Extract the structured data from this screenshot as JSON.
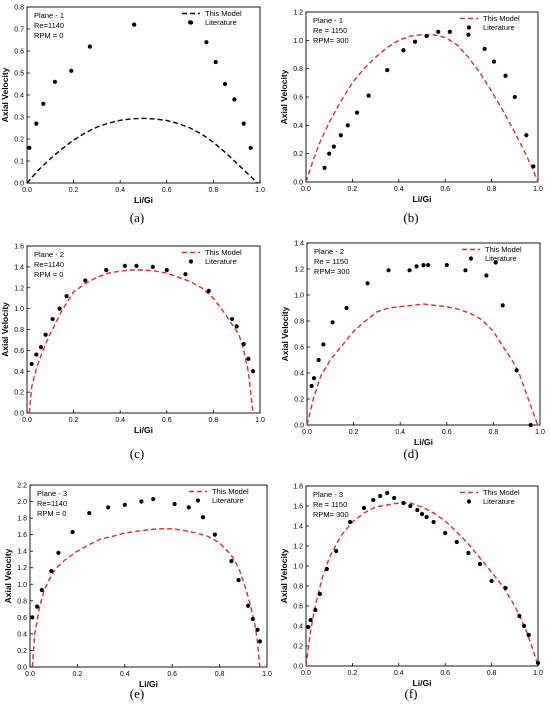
{
  "chart_data": [
    {
      "type": "line",
      "panel": "(a)",
      "legend_text": [
        "Plane - 1",
        "Re=1140",
        "RPM = 0"
      ],
      "xlabel": "Li/Gi",
      "ylabel": "Axial Velocity",
      "xlim": [
        0,
        1.0
      ],
      "ylim": [
        0,
        0.8
      ],
      "xticks": [
        "0.0",
        "0.2",
        "0.4",
        "0.6",
        "0.8",
        "1.0"
      ],
      "yticks": [
        "0.0",
        "0.1",
        "0.2",
        "0.3",
        "0.4",
        "0.5",
        "0.6",
        "0.7",
        "0.8"
      ],
      "legend_position": "top-right",
      "series": [
        {
          "name": "This Model",
          "style": "dashed",
          "color": "#000000",
          "x": [
            0,
            0.05,
            0.1,
            0.15,
            0.2,
            0.25,
            0.3,
            0.35,
            0.4,
            0.45,
            0.5,
            0.55,
            0.6,
            0.65,
            0.7,
            0.75,
            0.8,
            0.85,
            0.9,
            0.95,
            0.99
          ],
          "y": [
            0.0,
            0.06,
            0.11,
            0.155,
            0.195,
            0.228,
            0.254,
            0.272,
            0.285,
            0.292,
            0.294,
            0.291,
            0.284,
            0.27,
            0.25,
            0.222,
            0.185,
            0.14,
            0.09,
            0.04,
            0.0
          ]
        },
        {
          "name": "Literature",
          "style": "scatter",
          "color": "#000000",
          "x": [
            0.01,
            0.04,
            0.07,
            0.12,
            0.19,
            0.27,
            0.46,
            0.7,
            0.77,
            0.81,
            0.85,
            0.89,
            0.93,
            0.96
          ],
          "y": [
            0.16,
            0.27,
            0.36,
            0.46,
            0.51,
            0.62,
            0.72,
            0.73,
            0.64,
            0.55,
            0.45,
            0.38,
            0.27,
            0.16
          ]
        }
      ]
    },
    {
      "type": "line",
      "panel": "(b)",
      "legend_text": [
        "Plane - 1",
        "Re = 1150",
        "RPM= 300"
      ],
      "xlabel": "Li/Gi",
      "ylabel": "Axial Velocity",
      "xlim": [
        0,
        1.0
      ],
      "ylim": [
        0,
        1.2
      ],
      "xticks": [
        "0.0",
        "0.2",
        "0.4",
        "0.6",
        "0.8",
        "1.0"
      ],
      "yticks": [
        "0.0",
        "0.2",
        "0.4",
        "0.6",
        "0.8",
        "1.0",
        "1.2"
      ],
      "legend_position": "top-right",
      "series": [
        {
          "name": "This Model",
          "style": "dashed",
          "color": "#cc3333",
          "x": [
            0,
            0.03,
            0.06,
            0.1,
            0.15,
            0.2,
            0.25,
            0.3,
            0.35,
            0.4,
            0.45,
            0.5,
            0.55,
            0.6,
            0.65,
            0.7,
            0.75,
            0.8,
            0.85,
            0.9,
            0.94,
            0.97,
            1.0
          ],
          "y": [
            0.0,
            0.15,
            0.28,
            0.42,
            0.57,
            0.7,
            0.8,
            0.88,
            0.95,
            1.0,
            1.03,
            1.04,
            1.04,
            1.02,
            0.97,
            0.88,
            0.77,
            0.64,
            0.5,
            0.35,
            0.22,
            0.12,
            0.0
          ]
        },
        {
          "name": "Literature",
          "style": "scatter",
          "color": "#000000",
          "x": [
            0.08,
            0.1,
            0.12,
            0.15,
            0.18,
            0.22,
            0.27,
            0.35,
            0.42,
            0.47,
            0.52,
            0.57,
            0.62,
            0.7,
            0.77,
            0.81,
            0.86,
            0.9,
            0.95,
            0.98
          ],
          "y": [
            0.1,
            0.2,
            0.25,
            0.33,
            0.4,
            0.49,
            0.61,
            0.79,
            0.93,
            0.99,
            1.03,
            1.06,
            1.06,
            1.04,
            0.94,
            0.85,
            0.75,
            0.6,
            0.33,
            0.11
          ]
        }
      ]
    },
    {
      "type": "line",
      "panel": "(c)",
      "legend_text": [
        "Plane - 2",
        "Re=1140",
        "RPM = 0"
      ],
      "xlabel": "Li/Gi",
      "ylabel": "Axial Velocity",
      "xlim": [
        0,
        1.0
      ],
      "ylim": [
        0,
        1.6
      ],
      "xticks": [
        "0.0",
        "0.2",
        "0.4",
        "0.6",
        "0.8",
        "1.0"
      ],
      "yticks": [
        "0.0",
        "0.2",
        "0.4",
        "0.6",
        "0.8",
        "1.0",
        "1.2",
        "1.4",
        "1.6"
      ],
      "legend_position": "top-right",
      "series": [
        {
          "name": "This Model",
          "style": "dashed",
          "color": "#cc3333",
          "x": [
            0.01,
            0.02,
            0.04,
            0.06,
            0.08,
            0.1,
            0.15,
            0.2,
            0.25,
            0.3,
            0.35,
            0.4,
            0.45,
            0.5,
            0.55,
            0.6,
            0.65,
            0.7,
            0.75,
            0.8,
            0.85,
            0.88,
            0.91,
            0.93,
            0.95,
            0.96,
            0.97
          ],
          "y": [
            0.0,
            0.25,
            0.42,
            0.55,
            0.66,
            0.76,
            0.98,
            1.16,
            1.24,
            1.3,
            1.34,
            1.36,
            1.37,
            1.37,
            1.36,
            1.34,
            1.3,
            1.26,
            1.2,
            1.1,
            0.95,
            0.85,
            0.75,
            0.6,
            0.4,
            0.2,
            0.0
          ]
        },
        {
          "name": "Literature",
          "style": "scatter",
          "color": "#000000",
          "x": [
            0.02,
            0.04,
            0.06,
            0.08,
            0.11,
            0.14,
            0.17,
            0.25,
            0.34,
            0.42,
            0.47,
            0.54,
            0.6,
            0.68,
            0.78,
            0.88,
            0.9,
            0.93,
            0.95,
            0.97
          ],
          "y": [
            0.47,
            0.56,
            0.63,
            0.75,
            0.9,
            1.0,
            1.12,
            1.27,
            1.37,
            1.41,
            1.41,
            1.4,
            1.37,
            1.33,
            1.17,
            0.9,
            0.83,
            0.66,
            0.52,
            0.4
          ]
        }
      ]
    },
    {
      "type": "line",
      "panel": "(d)",
      "legend_text": [
        "Plane - 2",
        "Re = 1150",
        "RPM= 300"
      ],
      "xlabel": "Li/Gi",
      "ylabel": "Axial Velocity",
      "xlim": [
        0,
        1.0
      ],
      "ylim": [
        0,
        1.4
      ],
      "xticks": [
        "0.0",
        "0.2",
        "0.4",
        "0.6",
        "0.8",
        "1.0"
      ],
      "yticks": [
        "0.0",
        "0.2",
        "0.4",
        "0.6",
        "0.8",
        "1.0",
        "1.2",
        "1.4"
      ],
      "legend_position": "top-right",
      "series": [
        {
          "name": "This Model",
          "style": "dashed",
          "color": "#cc3333",
          "x": [
            0,
            0.03,
            0.06,
            0.1,
            0.15,
            0.2,
            0.25,
            0.3,
            0.35,
            0.4,
            0.45,
            0.5,
            0.55,
            0.6,
            0.65,
            0.7,
            0.75,
            0.8,
            0.85,
            0.88,
            0.91,
            0.94,
            0.97,
            0.99
          ],
          "y": [
            0.0,
            0.22,
            0.38,
            0.5,
            0.61,
            0.72,
            0.8,
            0.87,
            0.9,
            0.91,
            0.92,
            0.93,
            0.92,
            0.91,
            0.89,
            0.86,
            0.81,
            0.72,
            0.58,
            0.5,
            0.4,
            0.25,
            0.1,
            0.0
          ]
        },
        {
          "name": "Literature",
          "style": "scatter",
          "color": "#000000",
          "x": [
            0.02,
            0.03,
            0.05,
            0.07,
            0.11,
            0.17,
            0.26,
            0.35,
            0.44,
            0.47,
            0.5,
            0.52,
            0.6,
            0.68,
            0.77,
            0.81,
            0.84,
            0.9,
            0.96
          ],
          "y": [
            0.3,
            0.36,
            0.5,
            0.62,
            0.79,
            0.9,
            1.09,
            1.19,
            1.19,
            1.22,
            1.23,
            1.23,
            1.23,
            1.19,
            1.15,
            1.25,
            0.92,
            0.42,
            0.0
          ]
        }
      ]
    },
    {
      "type": "line",
      "panel": "(e)",
      "legend_text": [
        "Plane - 3",
        "Re=1140",
        "RPM = 0"
      ],
      "xlabel": "Li/Gi",
      "ylabel": "Axial Velocity",
      "xlim": [
        0,
        1.0
      ],
      "ylim": [
        0,
        2.2
      ],
      "xticks": [
        "0.0",
        "0.2",
        "0.4",
        "0.6",
        "0.8",
        "1.0"
      ],
      "yticks": [
        "0.0",
        "0.2",
        "0.4",
        "0.6",
        "0.8",
        "1.0",
        "1.2",
        "1.4",
        "1.6",
        "1.8",
        "2.0",
        "2.2"
      ],
      "legend_position": "top-right",
      "series": [
        {
          "name": "This Model",
          "style": "dashed",
          "color": "#cc3333",
          "x": [
            0.01,
            0.02,
            0.04,
            0.06,
            0.08,
            0.1,
            0.12,
            0.15,
            0.2,
            0.25,
            0.3,
            0.35,
            0.4,
            0.45,
            0.5,
            0.55,
            0.6,
            0.65,
            0.7,
            0.75,
            0.8,
            0.85,
            0.88,
            0.91,
            0.93,
            0.95,
            0.96,
            0.97
          ],
          "y": [
            0.0,
            0.4,
            0.72,
            0.93,
            1.05,
            1.15,
            1.22,
            1.3,
            1.4,
            1.48,
            1.55,
            1.58,
            1.62,
            1.64,
            1.66,
            1.67,
            1.67,
            1.65,
            1.62,
            1.58,
            1.5,
            1.35,
            1.2,
            0.95,
            0.75,
            0.5,
            0.3,
            0.0
          ]
        },
        {
          "name": "Literature",
          "style": "scatter",
          "color": "#000000",
          "x": [
            0.01,
            0.03,
            0.05,
            0.09,
            0.12,
            0.18,
            0.25,
            0.33,
            0.4,
            0.47,
            0.52,
            0.61,
            0.67,
            0.73,
            0.78,
            0.85,
            0.88,
            0.92,
            0.94,
            0.96,
            0.97
          ],
          "y": [
            0.6,
            0.73,
            0.93,
            1.16,
            1.38,
            1.63,
            1.86,
            1.93,
            1.96,
            2.0,
            2.03,
            1.97,
            1.93,
            1.81,
            1.6,
            1.28,
            1.05,
            0.74,
            0.58,
            0.45,
            0.31
          ]
        }
      ]
    },
    {
      "type": "line",
      "panel": "(f)",
      "legend_text": [
        "Plane - 3",
        "Re = 1150",
        "RPM= 300"
      ],
      "xlabel": "Li/Gi",
      "ylabel": "Axial Velocity",
      "xlim": [
        0,
        1.0
      ],
      "ylim": [
        0,
        1.8
      ],
      "xticks": [
        "0.0",
        "0.2",
        "0.4",
        "0.6",
        "0.8",
        "1.0"
      ],
      "yticks": [
        "0.0",
        "0.2",
        "0.4",
        "0.6",
        "0.8",
        "1.0",
        "1.2",
        "1.4",
        "1.6",
        "1.8"
      ],
      "legend_position": "top-right",
      "series": [
        {
          "name": "This Model",
          "style": "dashed",
          "color": "#cc3333",
          "x": [
            0.0,
            0.02,
            0.04,
            0.07,
            0.1,
            0.15,
            0.2,
            0.25,
            0.3,
            0.35,
            0.4,
            0.45,
            0.5,
            0.55,
            0.6,
            0.65,
            0.7,
            0.75,
            0.8,
            0.85,
            0.9,
            0.95,
            0.98,
            1.0
          ],
          "y": [
            0.0,
            0.35,
            0.6,
            0.88,
            1.08,
            1.3,
            1.44,
            1.53,
            1.59,
            1.61,
            1.63,
            1.63,
            1.59,
            1.53,
            1.45,
            1.34,
            1.22,
            1.08,
            0.94,
            0.79,
            0.6,
            0.35,
            0.15,
            0.0
          ]
        },
        {
          "name": "Literature",
          "style": "scatter",
          "color": "#000000",
          "x": [
            0.01,
            0.02,
            0.04,
            0.06,
            0.09,
            0.13,
            0.19,
            0.25,
            0.29,
            0.32,
            0.35,
            0.38,
            0.42,
            0.45,
            0.48,
            0.5,
            0.52,
            0.55,
            0.6,
            0.65,
            0.7,
            0.75,
            0.8,
            0.86,
            0.92,
            0.94,
            0.96,
            1.0
          ],
          "y": [
            0.39,
            0.46,
            0.56,
            0.72,
            0.97,
            1.15,
            1.44,
            1.58,
            1.66,
            1.7,
            1.73,
            1.68,
            1.63,
            1.6,
            1.56,
            1.52,
            1.49,
            1.44,
            1.33,
            1.24,
            1.13,
            1.02,
            0.85,
            0.78,
            0.5,
            0.4,
            0.31,
            0.03
          ]
        }
      ]
    }
  ]
}
